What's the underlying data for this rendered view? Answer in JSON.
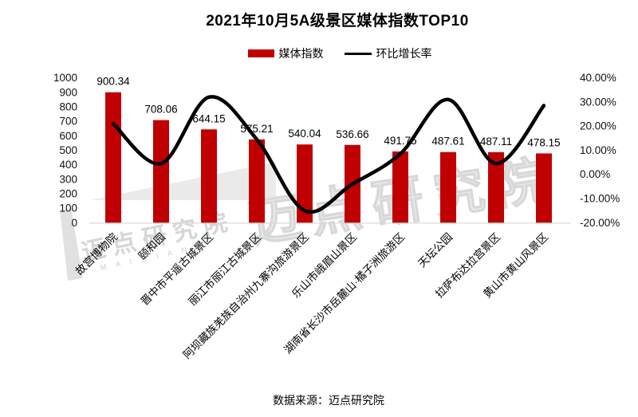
{
  "chart_data": {
    "type": "combo_bar_line",
    "title": "2021年10月5A级景区媒体指数TOP10",
    "categories": [
      "故宫博物院",
      "颐和园",
      "晋中市平遥古城景区",
      "丽江市丽江古城景区",
      "阿坝藏族羌族自治州九寨沟旅游景区",
      "乐山市峨眉山景区",
      "湖南省长沙市岳麓山·橘子洲旅游区",
      "天坛公园",
      "拉萨布达拉宫景区",
      "黄山市黄山风景区"
    ],
    "series": [
      {
        "name": "媒体指数",
        "type": "bar",
        "axis": "left",
        "color": "#c00000",
        "values": [
          900.34,
          708.06,
          644.15,
          575.21,
          540.04,
          536.66,
          491.75,
          487.61,
          487.11,
          478.15
        ]
      },
      {
        "name": "环比增长率",
        "type": "line",
        "axis": "right",
        "color": "#000000",
        "unit": "%",
        "values": [
          21,
          4.5,
          32,
          14.5,
          -15,
          -4,
          8.5,
          31,
          4.5,
          28.5
        ]
      }
    ],
    "left_axis": {
      "min": 0,
      "max": 1000,
      "step": 100,
      "tick_labels": [
        "1000",
        "900",
        "800",
        "700",
        "600",
        "500",
        "400",
        "300",
        "200",
        "100",
        "0"
      ]
    },
    "right_axis": {
      "min": -20,
      "max": 40,
      "step": 10,
      "tick_labels": [
        "40.00%",
        "30.00%",
        "20.00%",
        "10.00%",
        "0.00%",
        "-10.00%",
        "-20.00%"
      ]
    },
    "legend_position": "top",
    "grid": false,
    "source": "数据来源：迈点研究院",
    "watermark": {
      "text": "迈点研究院",
      "latin": "M A I D I A N"
    }
  }
}
